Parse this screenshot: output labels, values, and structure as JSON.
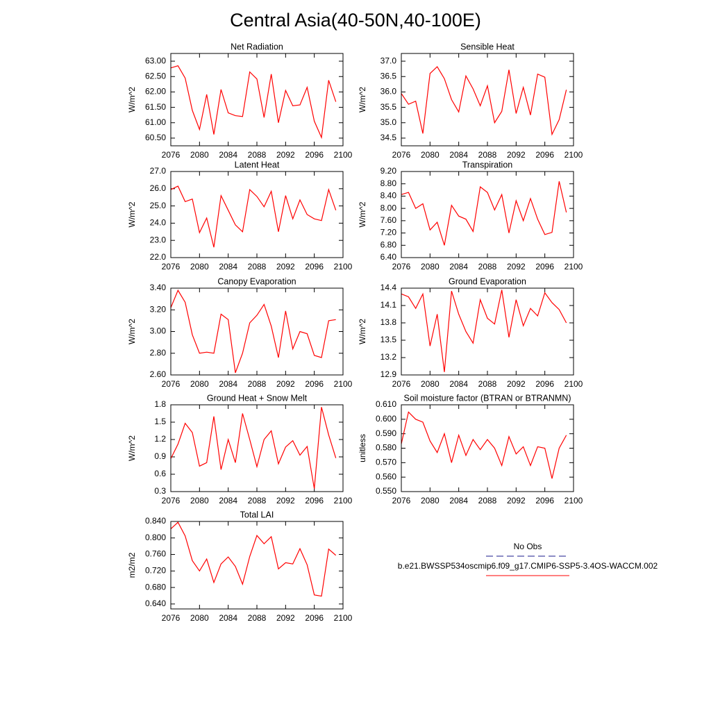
{
  "title": "Central Asia(40-50N,40-100E)",
  "legend": [
    {
      "label": "No Obs",
      "color": "#1a1a8c",
      "dash": true
    },
    {
      "label": "b.e21.BWSSP534oscmip6.f09_g17.CMIP6-SSP5-3.4OS-WACCM.002",
      "color": "#ff0000",
      "dash": false
    }
  ],
  "chart_data": [
    {
      "type": "line",
      "title": "Net Radiation",
      "ylabel": "W/m^2",
      "color": "#ff0000",
      "x": [
        2076,
        2077,
        2078,
        2079,
        2080,
        2081,
        2082,
        2083,
        2084,
        2085,
        2086,
        2087,
        2088,
        2089,
        2090,
        2091,
        2092,
        2093,
        2094,
        2095,
        2096,
        2097,
        2098,
        2099
      ],
      "values": [
        62.78,
        62.85,
        62.45,
        61.4,
        60.78,
        61.92,
        60.62,
        62.08,
        61.32,
        61.23,
        61.2,
        62.65,
        62.42,
        61.17,
        62.58,
        61.0,
        62.05,
        61.55,
        61.58,
        62.15,
        61.05,
        60.52,
        62.38,
        61.68
      ],
      "xlim": [
        2076,
        2100
      ],
      "xticks": [
        2076,
        2080,
        2084,
        2088,
        2092,
        2096,
        2100
      ],
      "ylim": [
        60.25,
        63.25
      ],
      "yticks": [
        {
          "value": 60.5,
          "label": "60.50"
        },
        {
          "value": 61,
          "label": "61.00"
        },
        {
          "value": 61.5,
          "label": "61.50"
        },
        {
          "value": 62,
          "label": "62.00"
        },
        {
          "value": 62.5,
          "label": "62.50"
        },
        {
          "value": 63,
          "label": "63.00"
        }
      ]
    },
    {
      "type": "line",
      "title": "Sensible Heat",
      "ylabel": "W/m^2",
      "color": "#ff0000",
      "x": [
        2076,
        2077,
        2078,
        2079,
        2080,
        2081,
        2082,
        2083,
        2084,
        2085,
        2086,
        2087,
        2088,
        2089,
        2090,
        2091,
        2092,
        2093,
        2094,
        2095,
        2096,
        2097,
        2098,
        2099
      ],
      "values": [
        35.95,
        35.6,
        35.7,
        34.65,
        36.6,
        36.82,
        36.43,
        35.75,
        35.35,
        36.52,
        36.1,
        35.55,
        36.2,
        35.0,
        35.37,
        36.72,
        35.3,
        36.15,
        35.25,
        36.58,
        36.48,
        34.62,
        35.1,
        36.07
      ],
      "xlim": [
        2076,
        2100
      ],
      "xticks": [
        2076,
        2080,
        2084,
        2088,
        2092,
        2096,
        2100
      ],
      "ylim": [
        34.25,
        37.25
      ],
      "yticks": [
        34.5,
        {
          "value": 35,
          "label": "35.0"
        },
        35.5,
        {
          "value": 36,
          "label": "36.0"
        },
        36.5,
        {
          "value": 37,
          "label": "37.0"
        }
      ]
    },
    {
      "type": "line",
      "title": "Latent Heat",
      "ylabel": "W/m^2",
      "color": "#ff0000",
      "x": [
        2076,
        2077,
        2078,
        2079,
        2080,
        2081,
        2082,
        2083,
        2084,
        2085,
        2086,
        2087,
        2088,
        2089,
        2090,
        2091,
        2092,
        2093,
        2094,
        2095,
        2096,
        2097,
        2098,
        2099
      ],
      "values": [
        25.95,
        26.15,
        25.25,
        25.4,
        23.45,
        24.3,
        22.6,
        25.6,
        24.75,
        23.9,
        23.5,
        25.95,
        25.55,
        24.95,
        25.85,
        23.5,
        25.6,
        24.25,
        25.35,
        24.5,
        24.25,
        24.15,
        25.95,
        24.75
      ],
      "xlim": [
        2076,
        2100
      ],
      "xticks": [
        2076,
        2080,
        2084,
        2088,
        2092,
        2096,
        2100
      ],
      "ylim": [
        22,
        27
      ],
      "yticks": [
        {
          "value": 22,
          "label": "22.0"
        },
        {
          "value": 23,
          "label": "23.0"
        },
        {
          "value": 24,
          "label": "24.0"
        },
        {
          "value": 25,
          "label": "25.0"
        },
        {
          "value": 26,
          "label": "26.0"
        },
        {
          "value": 27,
          "label": "27.0"
        }
      ]
    },
    {
      "type": "line",
      "title": "Transpiration",
      "ylabel": "W/m^2",
      "color": "#ff0000",
      "x": [
        2076,
        2077,
        2078,
        2079,
        2080,
        2081,
        2082,
        2083,
        2084,
        2085,
        2086,
        2087,
        2088,
        2089,
        2090,
        2091,
        2092,
        2093,
        2094,
        2095,
        2096,
        2097,
        2098,
        2099
      ],
      "values": [
        8.45,
        8.52,
        8.0,
        8.15,
        7.3,
        7.55,
        6.8,
        8.1,
        7.75,
        7.65,
        7.25,
        8.7,
        8.52,
        7.95,
        8.45,
        7.2,
        8.25,
        7.6,
        8.32,
        7.65,
        7.15,
        7.22,
        8.88,
        7.87
      ],
      "xlim": [
        2076,
        2100
      ],
      "xticks": [
        2076,
        2080,
        2084,
        2088,
        2092,
        2096,
        2100
      ],
      "ylim": [
        6.4,
        9.2
      ],
      "yticks": [
        {
          "value": 6.4,
          "label": "6.40"
        },
        {
          "value": 6.8,
          "label": "6.80"
        },
        {
          "value": 7.2,
          "label": "7.20"
        },
        {
          "value": 7.6,
          "label": "7.60"
        },
        {
          "value": 8,
          "label": "8.00"
        },
        {
          "value": 8.4,
          "label": "8.40"
        },
        {
          "value": 8.8,
          "label": "8.80"
        },
        {
          "value": 9.2,
          "label": "9.20"
        }
      ]
    },
    {
      "type": "line",
      "title": "Canopy Evaporation",
      "ylabel": "W/m^2",
      "color": "#ff0000",
      "x": [
        2076,
        2077,
        2078,
        2079,
        2080,
        2081,
        2082,
        2083,
        2084,
        2085,
        2086,
        2087,
        2088,
        2089,
        2090,
        2091,
        2092,
        2093,
        2094,
        2095,
        2096,
        2097,
        2098,
        2099
      ],
      "values": [
        3.22,
        3.38,
        3.27,
        2.97,
        2.8,
        2.81,
        2.8,
        3.16,
        3.11,
        2.62,
        2.8,
        3.08,
        3.15,
        3.25,
        3.05,
        2.76,
        3.19,
        2.84,
        3.0,
        2.98,
        2.78,
        2.76,
        3.1,
        3.11
      ],
      "xlim": [
        2076,
        2100
      ],
      "xticks": [
        2076,
        2080,
        2084,
        2088,
        2092,
        2096,
        2100
      ],
      "ylim": [
        2.6,
        3.4
      ],
      "yticks": [
        {
          "value": 2.6,
          "label": "2.60"
        },
        {
          "value": 2.8,
          "label": "2.80"
        },
        {
          "value": 3,
          "label": "3.00"
        },
        {
          "value": 3.2,
          "label": "3.20"
        },
        {
          "value": 3.4,
          "label": "3.40"
        }
      ]
    },
    {
      "type": "line",
      "title": "Ground Evaporation",
      "ylabel": "W/m^2",
      "color": "#ff0000",
      "x": [
        2076,
        2077,
        2078,
        2079,
        2080,
        2081,
        2082,
        2083,
        2084,
        2085,
        2086,
        2087,
        2088,
        2089,
        2090,
        2091,
        2092,
        2093,
        2094,
        2095,
        2096,
        2097,
        2098,
        2099
      ],
      "values": [
        14.3,
        14.25,
        14.05,
        14.3,
        13.4,
        13.95,
        12.95,
        14.35,
        13.95,
        13.65,
        13.45,
        14.2,
        13.88,
        13.78,
        14.37,
        13.55,
        14.2,
        13.75,
        14.05,
        13.92,
        14.32,
        14.15,
        14.03,
        13.8
      ],
      "xlim": [
        2076,
        2100
      ],
      "xticks": [
        2076,
        2080,
        2084,
        2088,
        2092,
        2096,
        2100
      ],
      "ylim": [
        12.9,
        14.4
      ],
      "yticks": [
        12.9,
        13.2,
        13.5,
        13.8,
        14.1,
        14.4
      ]
    },
    {
      "type": "line",
      "title": "Ground Heat + Snow Melt",
      "ylabel": "W/m^2",
      "color": "#ff0000",
      "x": [
        2076,
        2077,
        2078,
        2079,
        2080,
        2081,
        2082,
        2083,
        2084,
        2085,
        2086,
        2087,
        2088,
        2089,
        2090,
        2091,
        2092,
        2093,
        2094,
        2095,
        2096,
        2097,
        2098,
        2099
      ],
      "values": [
        0.87,
        1.12,
        1.48,
        1.32,
        0.74,
        0.8,
        1.6,
        0.68,
        1.2,
        0.8,
        1.65,
        1.2,
        0.73,
        1.2,
        1.35,
        0.78,
        1.07,
        1.18,
        0.93,
        1.08,
        0.35,
        1.76,
        1.28,
        0.88
      ],
      "xlim": [
        2076,
        2100
      ],
      "xticks": [
        2076,
        2080,
        2084,
        2088,
        2092,
        2096,
        2100
      ],
      "ylim": [
        0.3,
        1.8
      ],
      "yticks": [
        0.3,
        0.6,
        0.9,
        1.2,
        1.5,
        1.8
      ]
    },
    {
      "type": "line",
      "title": "Soil moisture factor (BTRAN or BTRANMN)",
      "ylabel": "unitless",
      "color": "#ff0000",
      "x": [
        2076,
        2077,
        2078,
        2079,
        2080,
        2081,
        2082,
        2083,
        2084,
        2085,
        2086,
        2087,
        2088,
        2089,
        2090,
        2091,
        2092,
        2093,
        2094,
        2095,
        2096,
        2097,
        2098,
        2099
      ],
      "values": [
        0.583,
        0.605,
        0.6,
        0.598,
        0.585,
        0.577,
        0.59,
        0.57,
        0.589,
        0.575,
        0.586,
        0.579,
        0.586,
        0.58,
        0.568,
        0.588,
        0.576,
        0.581,
        0.568,
        0.581,
        0.58,
        0.559,
        0.58,
        0.589
      ],
      "xlim": [
        2076,
        2100
      ],
      "xticks": [
        2076,
        2080,
        2084,
        2088,
        2092,
        2096,
        2100
      ],
      "ylim": [
        0.55,
        0.61
      ],
      "yticks": [
        {
          "value": 0.55,
          "label": "0.550"
        },
        {
          "value": 0.56,
          "label": "0.560"
        },
        {
          "value": 0.57,
          "label": "0.570"
        },
        {
          "value": 0.58,
          "label": "0.580"
        },
        {
          "value": 0.59,
          "label": "0.590"
        },
        {
          "value": 0.6,
          "label": "0.600"
        },
        {
          "value": 0.61,
          "label": "0.610"
        }
      ]
    },
    {
      "type": "line",
      "title": "Total LAI",
      "ylabel": "m2/m2",
      "color": "#ff0000",
      "x": [
        2076,
        2077,
        2078,
        2079,
        2080,
        2081,
        2082,
        2083,
        2084,
        2085,
        2086,
        2087,
        2088,
        2089,
        2090,
        2091,
        2092,
        2093,
        2094,
        2095,
        2096,
        2097,
        2098,
        2099
      ],
      "values": [
        0.822,
        0.838,
        0.805,
        0.745,
        0.72,
        0.749,
        0.692,
        0.737,
        0.754,
        0.731,
        0.688,
        0.755,
        0.806,
        0.786,
        0.803,
        0.725,
        0.74,
        0.737,
        0.774,
        0.735,
        0.662,
        0.659,
        0.773,
        0.758
      ],
      "xlim": [
        2076,
        2100
      ],
      "xticks": [
        2076,
        2080,
        2084,
        2088,
        2092,
        2096,
        2100
      ],
      "ylim": [
        0.628,
        0.84
      ],
      "yticks": [
        {
          "value": 0.64,
          "label": "0.640"
        },
        {
          "value": 0.68,
          "label": "0.680"
        },
        {
          "value": 0.72,
          "label": "0.720"
        },
        {
          "value": 0.76,
          "label": "0.760"
        },
        {
          "value": 0.8,
          "label": "0.800"
        },
        {
          "value": 0.84,
          "label": "0.840"
        }
      ]
    }
  ]
}
